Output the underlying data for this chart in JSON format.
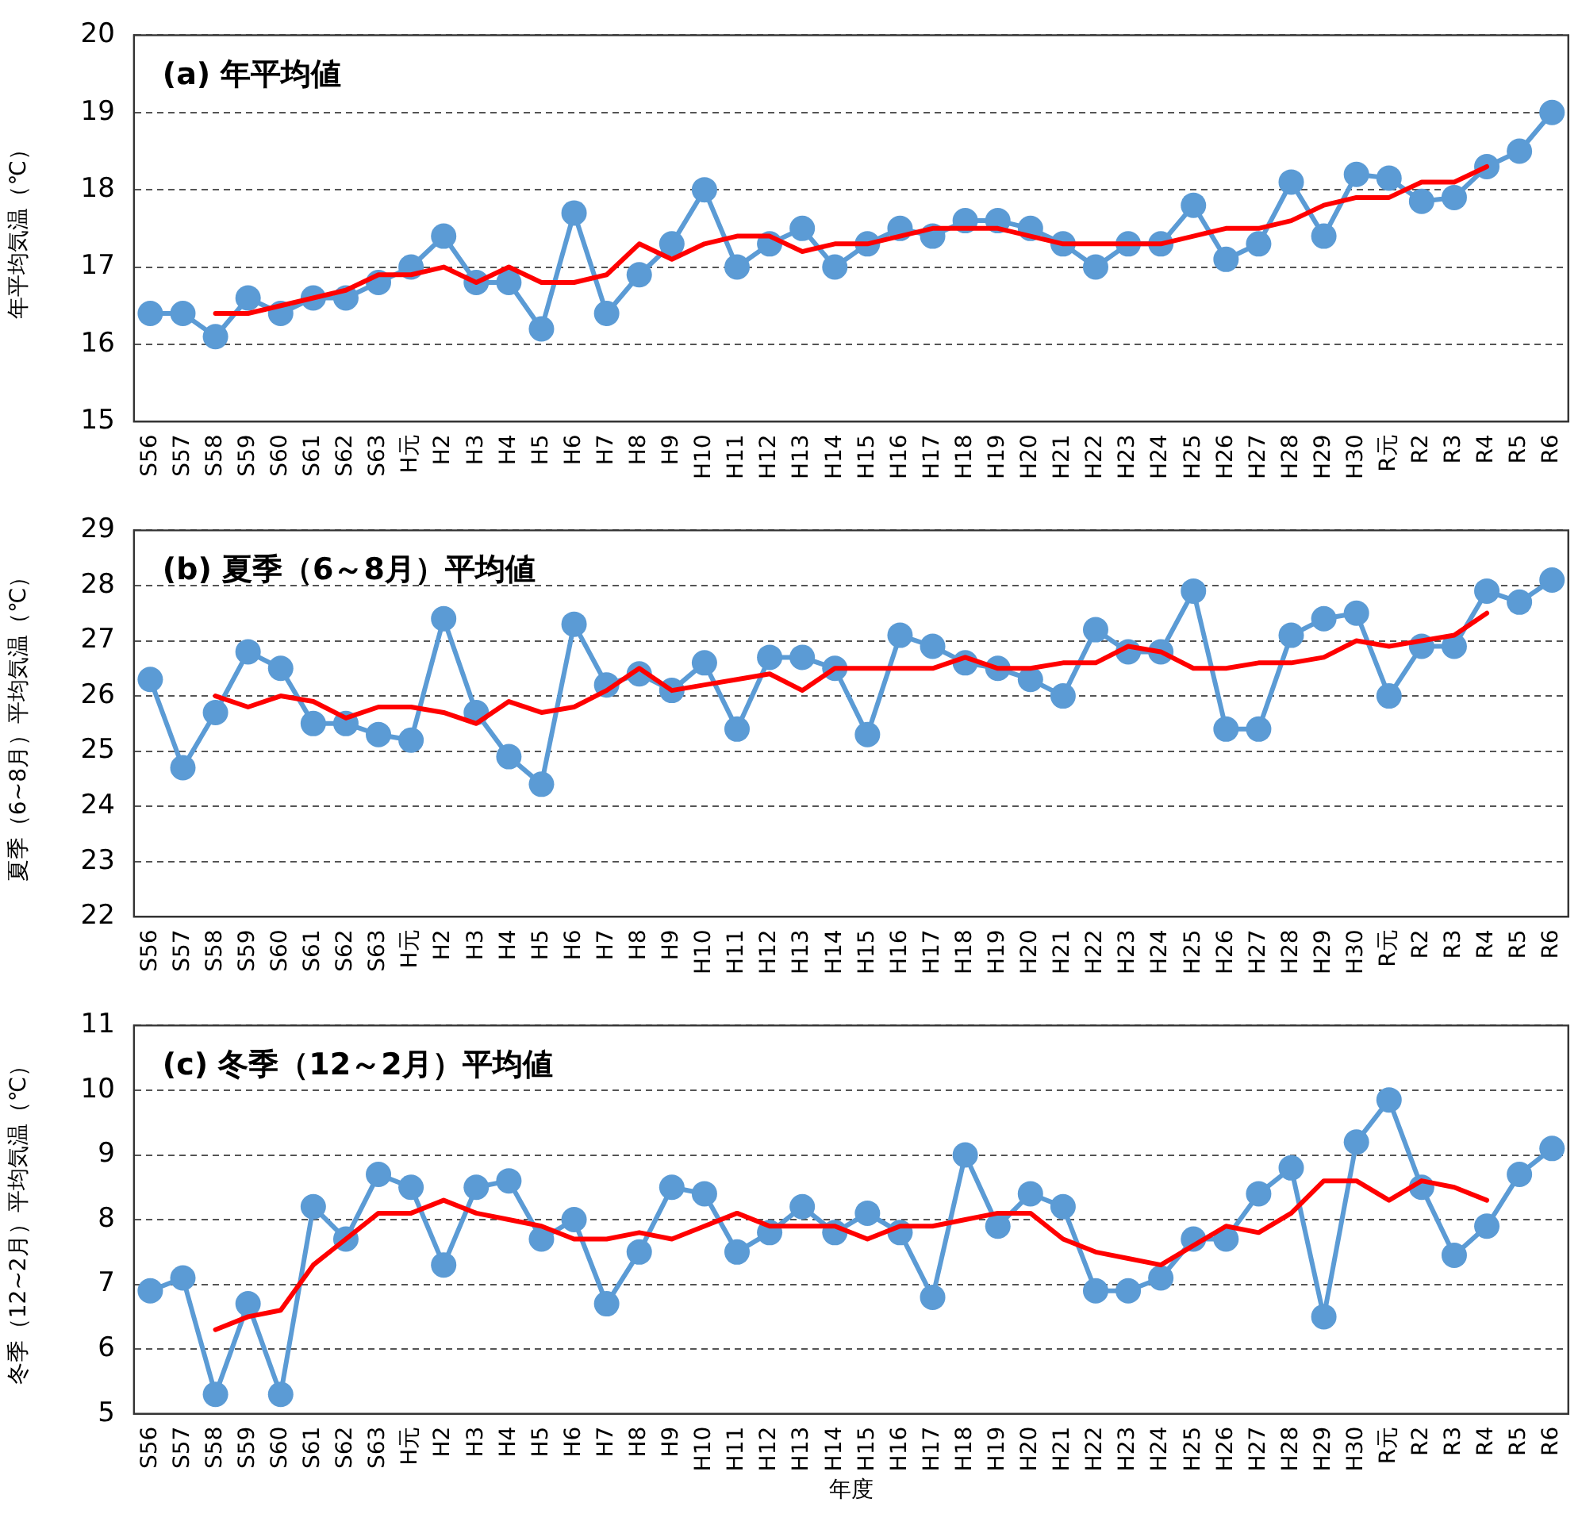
{
  "chart_data": [
    {
      "type": "line",
      "title": "(a) 年平均値",
      "ylabel": "年平均気温（℃）",
      "categories": [
        "S56",
        "S57",
        "S58",
        "S59",
        "S60",
        "S61",
        "S62",
        "S63",
        "H元",
        "H2",
        "H3",
        "H4",
        "H5",
        "H6",
        "H7",
        "H8",
        "H9",
        "H10",
        "H11",
        "H12",
        "H13",
        "H14",
        "H15",
        "H16",
        "H17",
        "H18",
        "H19",
        "H20",
        "H21",
        "H22",
        "H23",
        "H24",
        "H25",
        "H26",
        "H27",
        "H28",
        "H29",
        "H30",
        "R元",
        "R2",
        "R3",
        "R4",
        "R5",
        "R6"
      ],
      "series": [
        {
          "color": "#5b9bd5",
          "marker": "circle",
          "values": [
            16.4,
            16.4,
            16.1,
            16.6,
            16.4,
            16.6,
            16.6,
            16.8,
            17.0,
            17.4,
            16.8,
            16.8,
            16.2,
            17.7,
            16.4,
            16.9,
            17.3,
            18.0,
            17.0,
            17.3,
            17.5,
            17.0,
            17.3,
            17.5,
            17.4,
            17.6,
            17.6,
            17.5,
            17.3,
            17.0,
            17.3,
            17.3,
            17.8,
            17.1,
            17.3,
            18.1,
            17.4,
            18.2,
            18.15,
            17.85,
            17.9,
            18.3,
            18.5,
            19.0
          ]
        },
        {
          "color": "#ff0000",
          "marker": "none",
          "values": [
            null,
            null,
            16.4,
            16.4,
            16.5,
            16.6,
            16.7,
            16.9,
            16.9,
            17.0,
            16.8,
            17.0,
            16.8,
            16.8,
            16.9,
            17.3,
            17.1,
            17.3,
            17.4,
            17.4,
            17.2,
            17.3,
            17.3,
            17.4,
            17.5,
            17.5,
            17.5,
            17.4,
            17.3,
            17.3,
            17.3,
            17.3,
            17.4,
            17.5,
            17.5,
            17.6,
            17.8,
            17.9,
            17.9,
            18.1,
            18.1,
            18.3,
            null,
            null
          ]
        }
      ],
      "ylim": [
        15,
        20
      ],
      "yticks": [
        15,
        16,
        17,
        18,
        19,
        20
      ],
      "grid": "y",
      "legend": false,
      "line_style": "solid"
    },
    {
      "type": "line",
      "title": "(b) 夏季（6～8月）平均値",
      "ylabel": "夏季（6~8月）平均気温（℃）",
      "categories": [
        "S56",
        "S57",
        "S58",
        "S59",
        "S60",
        "S61",
        "S62",
        "S63",
        "H元",
        "H2",
        "H3",
        "H4",
        "H5",
        "H6",
        "H7",
        "H8",
        "H9",
        "H10",
        "H11",
        "H12",
        "H13",
        "H14",
        "H15",
        "H16",
        "H17",
        "H18",
        "H19",
        "H20",
        "H21",
        "H22",
        "H23",
        "H24",
        "H25",
        "H26",
        "H27",
        "H28",
        "H29",
        "H30",
        "R元",
        "R2",
        "R3",
        "R4",
        "R5",
        "R6"
      ],
      "series": [
        {
          "color": "#5b9bd5",
          "marker": "circle",
          "values": [
            26.3,
            24.7,
            25.7,
            26.8,
            26.5,
            25.5,
            25.5,
            25.3,
            25.2,
            27.4,
            25.7,
            24.9,
            24.4,
            27.3,
            26.2,
            26.4,
            26.1,
            26.6,
            25.4,
            26.7,
            26.7,
            26.5,
            25.3,
            27.1,
            26.9,
            26.6,
            26.5,
            26.3,
            26.0,
            27.2,
            26.8,
            26.8,
            27.9,
            25.4,
            25.4,
            27.1,
            27.4,
            27.5,
            26.0,
            26.9,
            26.9,
            27.9,
            27.7,
            28.1
          ]
        },
        {
          "color": "#ff0000",
          "marker": "none",
          "values": [
            null,
            null,
            26.0,
            25.8,
            26.0,
            25.9,
            25.6,
            25.8,
            25.8,
            25.7,
            25.5,
            25.9,
            25.7,
            25.8,
            26.1,
            26.5,
            26.1,
            26.2,
            26.3,
            26.4,
            26.1,
            26.5,
            26.5,
            26.5,
            26.5,
            26.7,
            26.5,
            26.5,
            26.6,
            26.6,
            26.9,
            26.8,
            26.5,
            26.5,
            26.6,
            26.6,
            26.7,
            27.0,
            26.9,
            27.0,
            27.1,
            27.5,
            null,
            null
          ]
        }
      ],
      "ylim": [
        22,
        29
      ],
      "yticks": [
        22,
        23,
        24,
        25,
        26,
        27,
        28,
        29
      ],
      "grid": "y",
      "legend": false,
      "line_style": "solid"
    },
    {
      "type": "line",
      "title": "(c) 冬季（12～2月）平均値",
      "ylabel": "冬季（12~2月）平均気温（℃）",
      "xlabel": "年度",
      "categories": [
        "S56",
        "S57",
        "S58",
        "S59",
        "S60",
        "S61",
        "S62",
        "S63",
        "H元",
        "H2",
        "H3",
        "H4",
        "H5",
        "H6",
        "H7",
        "H8",
        "H9",
        "H10",
        "H11",
        "H12",
        "H13",
        "H14",
        "H15",
        "H16",
        "H17",
        "H18",
        "H19",
        "H20",
        "H21",
        "H22",
        "H23",
        "H24",
        "H25",
        "H26",
        "H27",
        "H28",
        "H29",
        "H30",
        "R元",
        "R2",
        "R3",
        "R4",
        "R5",
        "R6"
      ],
      "series": [
        {
          "color": "#5b9bd5",
          "marker": "circle",
          "values": [
            6.9,
            7.1,
            5.3,
            6.7,
            5.3,
            8.2,
            7.7,
            8.7,
            8.5,
            7.3,
            8.5,
            8.6,
            7.7,
            8.0,
            6.7,
            7.5,
            8.5,
            8.4,
            7.5,
            7.8,
            8.2,
            7.8,
            8.1,
            7.8,
            6.8,
            9.0,
            7.9,
            8.4,
            8.2,
            6.9,
            6.9,
            7.1,
            7.7,
            7.7,
            8.4,
            8.8,
            6.5,
            9.2,
            9.85,
            8.5,
            7.45,
            7.9,
            8.7,
            9.1
          ]
        },
        {
          "color": "#ff0000",
          "marker": "none",
          "values": [
            null,
            null,
            6.3,
            6.5,
            6.6,
            7.3,
            7.7,
            8.1,
            8.1,
            8.3,
            8.1,
            8.0,
            7.9,
            7.7,
            7.7,
            7.8,
            7.7,
            7.9,
            8.1,
            7.9,
            7.9,
            7.9,
            7.7,
            7.9,
            7.9,
            8.0,
            8.1,
            8.1,
            7.7,
            7.5,
            7.4,
            7.3,
            7.6,
            7.9,
            7.8,
            8.1,
            8.6,
            8.6,
            8.3,
            8.6,
            8.5,
            8.3,
            null,
            null
          ]
        }
      ],
      "ylim": [
        5,
        11
      ],
      "yticks": [
        5,
        6,
        7,
        8,
        9,
        10,
        11
      ],
      "grid": "y",
      "legend": false,
      "line_style": "solid"
    }
  ]
}
